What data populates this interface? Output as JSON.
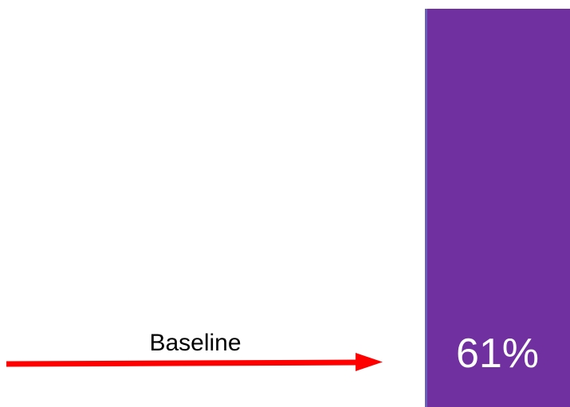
{
  "chart_data": {
    "type": "bar",
    "categories": [
      ""
    ],
    "values": [
      61
    ],
    "value_labels": [
      "61%"
    ],
    "ylim": [
      0,
      100
    ],
    "annotations": [
      {
        "text": "Baseline",
        "kind": "arrow",
        "direction": "right"
      }
    ]
  },
  "colors": {
    "bar": "#7030a0",
    "bar_edge": "#6a5fb8",
    "arrow": "#ff0000",
    "value_label": "#ffffff"
  }
}
